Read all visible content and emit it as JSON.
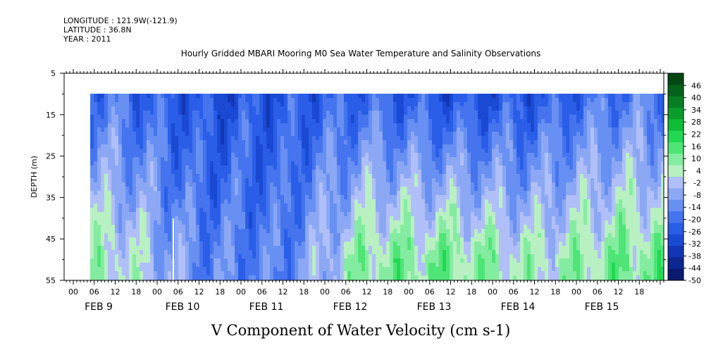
{
  "header": {
    "longitude": "LONGITUDE : 121.9W(-121.9)",
    "latitude": "LATITUDE : 36.8N",
    "year": "YEAR : 2011"
  },
  "chart_data": {
    "type": "heatmap",
    "title": "Hourly Gridded MBARI Mooring M0 Sea Water Temperature and Salinity Observations",
    "xlabel": "V Component of Water Velocity (cm s-1)",
    "ylabel": "DEPTH (m)",
    "y_ticks": [
      "5",
      "15",
      "25",
      "35",
      "45",
      "55"
    ],
    "ylim": [
      55,
      5
    ],
    "data_depth_range": [
      10,
      55
    ],
    "x_hour_ticks": [
      "00",
      "06",
      "12",
      "18",
      "00",
      "06",
      "12",
      "18",
      "00",
      "06",
      "12",
      "18",
      "00",
      "06",
      "12",
      "18",
      "00",
      "06",
      "12",
      "18",
      "00",
      "06",
      "12",
      "18",
      "00",
      "06",
      "12",
      "18"
    ],
    "x_day_labels": [
      "FEB  9",
      "FEB 10",
      "FEB 11",
      "FEB 12",
      "FEB 13",
      "FEB 14",
      "FEB 15"
    ],
    "colorbar": {
      "labels": [
        "46",
        "40",
        "34",
        "28",
        "22",
        "16",
        "10",
        "4",
        "-2",
        "-8",
        "-14",
        "-20",
        "-26",
        "-32",
        "-38",
        "-44",
        "-50"
      ],
      "range": [
        -50,
        52
      ]
    },
    "days": [
      "FEB 9",
      "FEB 10",
      "FEB 11",
      "FEB 12",
      "FEB 13",
      "FEB 14",
      "FEB 15"
    ],
    "green_velocity_at_depth_45m_by_day_cm_s": [
      8,
      -12,
      -14,
      12,
      14,
      6,
      14
    ],
    "surface_velocity_10m_by_day_cm_s": [
      -18,
      -26,
      -24,
      -20,
      -26,
      -24,
      -16
    ]
  }
}
